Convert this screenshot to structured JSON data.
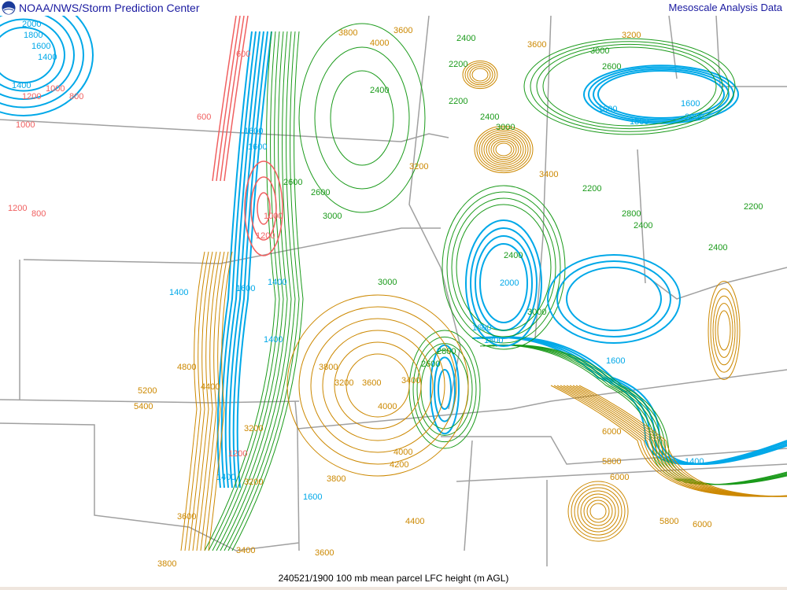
{
  "header": {
    "org": "NOAA/NWS/Storm Prediction Center",
    "product": "Mesoscale Analysis Data",
    "logo_icon": "noaa-logo-icon"
  },
  "footer": {
    "caption": "240521/1900 100 mb mean parcel LFC height (m AGL)"
  },
  "colors": {
    "low_lfc": "#00a8e8",
    "mid_lfc": "#1a9a1a",
    "high_lfc": "#cc8800",
    "very_low_lfc": "#f06060",
    "borders": "#a0a0a0"
  },
  "contour_labels": [
    "2000",
    "1800",
    "1600",
    "1400",
    "1400",
    "1200",
    "1000",
    "800",
    "600",
    "600",
    "1000",
    "1200",
    "800",
    "1600",
    "1600",
    "1000",
    "1200",
    "1400",
    "1400",
    "1400",
    "2600",
    "2600",
    "3000",
    "3000",
    "3200",
    "3800",
    "4000",
    "2400",
    "3600",
    "2400",
    "2200",
    "2200",
    "2400",
    "3000",
    "3400",
    "3600",
    "3200",
    "3000",
    "2600",
    "1600",
    "1800",
    "1600",
    "2000",
    "2200",
    "2800",
    "2400",
    "2200",
    "2400",
    "2400",
    "2000",
    "1600",
    "1800",
    "1600",
    "3000",
    "2800",
    "2600",
    "4000",
    "3600",
    "3400",
    "3200",
    "4000",
    "4200",
    "3800",
    "3200",
    "3200",
    "3400",
    "3600",
    "3800",
    "4400",
    "5800",
    "6000",
    "6000",
    "5800",
    "6000",
    "1400",
    "1200",
    "1600",
    "1400",
    "1600",
    "4800",
    "5200",
    "5400",
    "4400",
    "3600",
    "3800"
  ]
}
